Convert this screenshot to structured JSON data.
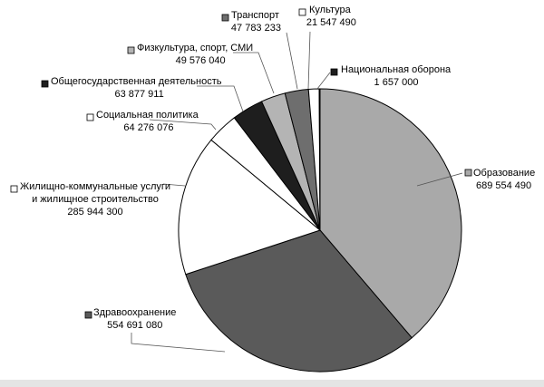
{
  "chart_data": {
    "type": "pie",
    "title": "",
    "slices": [
      {
        "name": "Образование",
        "value_label": "689 554 490",
        "value": 689554490,
        "color": "#a9a9a9"
      },
      {
        "name": "Здравоохранение",
        "value_label": "554 691 080",
        "value": 554691080,
        "color": "#5a5a5a"
      },
      {
        "name": "Жилищно-коммунальные услуги и жилищное строительство",
        "label_lines": [
          "Жилищно-коммунальные услуги",
          "и жилищное строительство"
        ],
        "value_label": "285 944 300",
        "value": 285944300,
        "color": "#ffffff"
      },
      {
        "name": "Социальная политика",
        "value_label": "64 276 076",
        "value": 64276076,
        "color": "#ffffff"
      },
      {
        "name": "Общегосударственная деятельность",
        "value_label": "63 877 911",
        "value": 63877911,
        "color": "#1e1e1e"
      },
      {
        "name": "Физкультура, спорт, СМИ",
        "value_label": "49 576 040",
        "value": 49576040,
        "color": "#b4b4b4"
      },
      {
        "name": "Транспорт",
        "value_label": "47 783 233",
        "value": 47783233,
        "color": "#6e6e6e"
      },
      {
        "name": "Культура",
        "value_label": "21 547 490",
        "value": 21547490,
        "color": "#ffffff"
      },
      {
        "name": "Национальная оборона",
        "value_label": "1 657 000",
        "value": 1657000,
        "color": "#1e1e1e"
      }
    ],
    "start_angle_deg": 0,
    "direction": "clockwise",
    "legend": "none (labels beside slices)"
  }
}
